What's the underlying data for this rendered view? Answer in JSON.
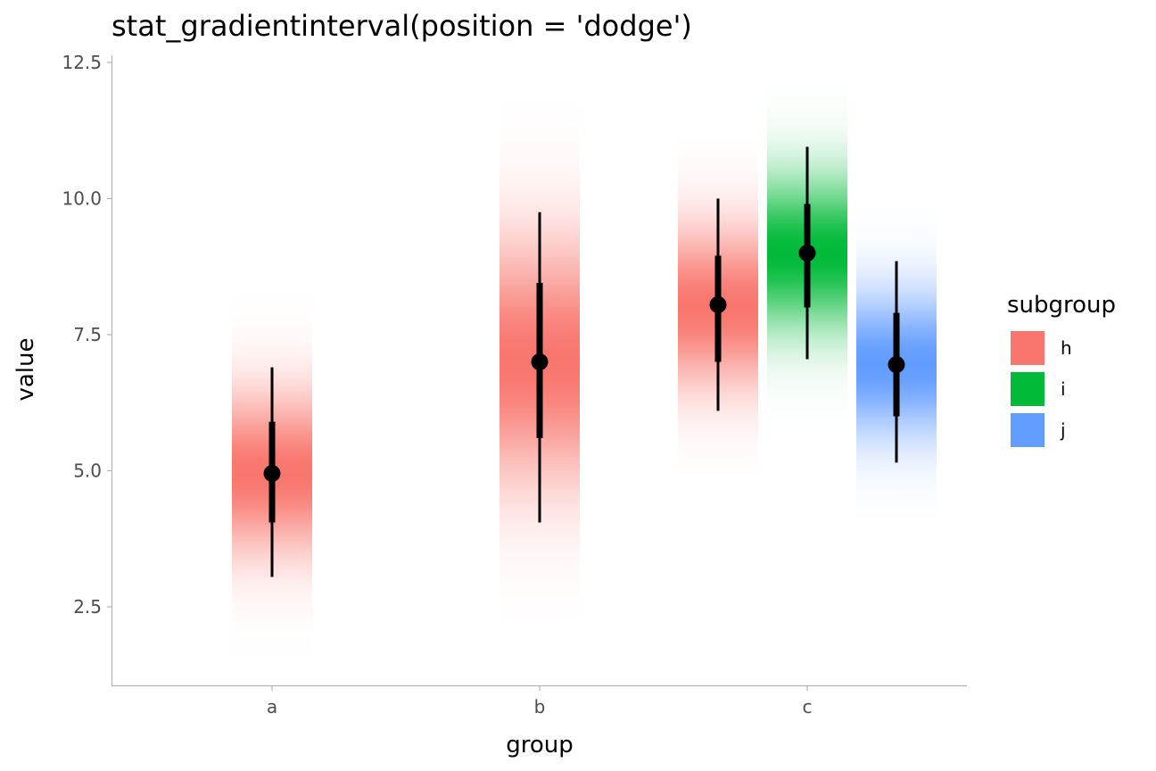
{
  "chart_data": {
    "type": "interval",
    "title": "stat_gradientinterval(position = 'dodge')",
    "xlabel": "group",
    "ylabel": "value",
    "categories": [
      "a",
      "b",
      "c"
    ],
    "yticks": [
      "2.5",
      "5.0",
      "7.5",
      "10.0",
      "12.5"
    ],
    "ytick_values": [
      2.5,
      5.0,
      7.5,
      10.0,
      12.5
    ],
    "ylim": [
      1.1,
      12.6
    ],
    "grid": false,
    "legend": {
      "title": "subgroup",
      "placement": "right",
      "entries": [
        {
          "label": "h",
          "color": "#F8766D"
        },
        {
          "label": "i",
          "color": "#00BA38"
        },
        {
          "label": "j",
          "color": "#619CFF"
        }
      ]
    },
    "series": [
      {
        "group": "a",
        "subgroup": "h",
        "color": "#F8766D",
        "center": 4.95,
        "mean": 4.95,
        "sd": 1.0,
        "inner": [
          4.05,
          5.9
        ],
        "outer": [
          3.05,
          6.9
        ],
        "range": [
          1.6,
          8.2
        ],
        "slot": 0,
        "slots": 1
      },
      {
        "group": "b",
        "subgroup": "h",
        "color": "#F8766D",
        "center": 7.0,
        "mean": 7.0,
        "sd": 1.5,
        "inner": [
          5.6,
          8.45
        ],
        "outer": [
          4.05,
          9.75
        ],
        "range": [
          2.3,
          11.8
        ],
        "slot": 0,
        "slots": 1
      },
      {
        "group": "c",
        "subgroup": "h",
        "color": "#F8766D",
        "center": 8.05,
        "mean": 8.0,
        "sd": 1.0,
        "inner": [
          7.0,
          8.95
        ],
        "outer": [
          6.1,
          10.0
        ],
        "range": [
          4.9,
          11.1
        ],
        "slot": 0,
        "slots": 3
      },
      {
        "group": "c",
        "subgroup": "i",
        "color": "#00BA38",
        "center": 9.0,
        "mean": 9.0,
        "sd": 0.95,
        "inner": [
          8.0,
          9.9
        ],
        "outer": [
          7.05,
          10.95
        ],
        "range": [
          5.9,
          12.1
        ],
        "slot": 1,
        "slots": 3
      },
      {
        "group": "c",
        "subgroup": "j",
        "color": "#619CFF",
        "center": 6.95,
        "mean": 6.95,
        "sd": 0.9,
        "inner": [
          6.0,
          7.9
        ],
        "outer": [
          5.15,
          8.85
        ],
        "range": [
          4.1,
          9.75
        ],
        "slot": 2,
        "slots": 3
      }
    ]
  }
}
